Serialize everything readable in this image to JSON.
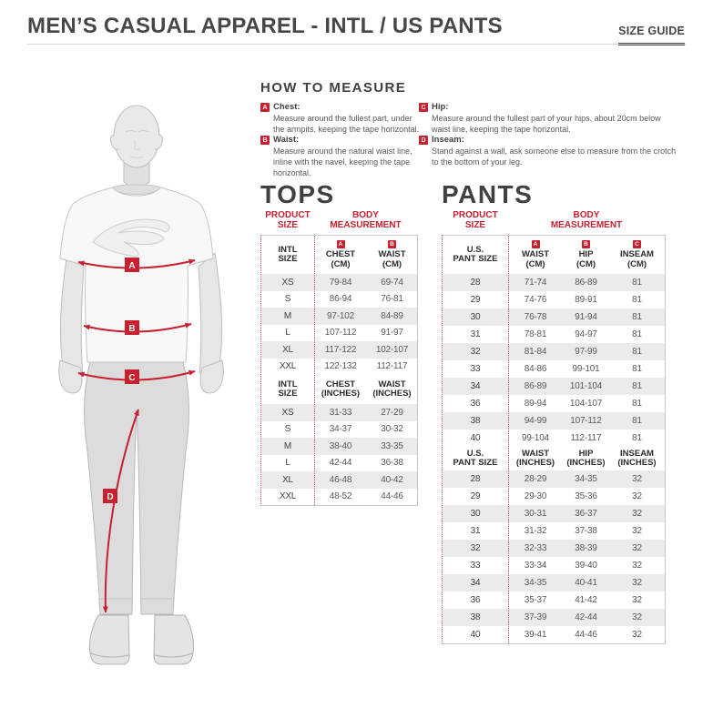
{
  "page": {
    "title": "MEN’S CASUAL APPAREL - INTL / US PANTS",
    "size_guide_label": "SIZE GUIDE"
  },
  "colors": {
    "accent_red": "#c8202e",
    "dark_text": "#414042",
    "row_stripe": "#ebebeb"
  },
  "how_to_measure": {
    "heading": "HOW TO MEASURE",
    "items": [
      {
        "letter": "A",
        "label": "Chest:",
        "text": "Measure around the fullest part, under the armpits, keeping the tape horizontal."
      },
      {
        "letter": "B",
        "label": "Waist:",
        "text": "Measure around the natural waist line, inline with the navel, keeping the tape horizontal."
      },
      {
        "letter": "C",
        "label": "Hip:",
        "text": "Measure around the fullest part of your hips, about 20cm below waist line, keeping the tape horizontal."
      },
      {
        "letter": "D",
        "label": "Inseam:",
        "text": "Stand against a wall, ask someone else to measure from the crotch to the bottom of your leg."
      }
    ]
  },
  "figure": {
    "badge_a": "A",
    "badge_b": "B",
    "badge_c": "C",
    "badge_d": "D"
  },
  "tops": {
    "title": "TOPS",
    "group_product": "PRODUCT SIZE",
    "group_body": "BODY MEASUREMENT",
    "cm_header": {
      "size": "INTL\nSIZE",
      "c1_badge": "A",
      "c1": "CHEST\n(CM)",
      "c2_badge": "B",
      "c2": "WAIST\n(CM)"
    },
    "inch_header": {
      "size": "INTL\nSIZE",
      "c1": "CHEST\n(INCHES)",
      "c2": "WAIST\n(INCHES)"
    },
    "cm_rows": [
      [
        "XS",
        "79-84",
        "69-74"
      ],
      [
        "S",
        "86-94",
        "76-81"
      ],
      [
        "M",
        "97-102",
        "84-89"
      ],
      [
        "L",
        "107-112",
        "91-97"
      ],
      [
        "XL",
        "117-122",
        "102-107"
      ],
      [
        "XXL",
        "122-132",
        "112-117"
      ]
    ],
    "inch_rows": [
      [
        "XS",
        "31-33",
        "27-29"
      ],
      [
        "S",
        "34-37",
        "30-32"
      ],
      [
        "M",
        "38-40",
        "33-35"
      ],
      [
        "L",
        "42-44",
        "36-38"
      ],
      [
        "XL",
        "46-48",
        "40-42"
      ],
      [
        "XXL",
        "48-52",
        "44-46"
      ]
    ]
  },
  "pants": {
    "title": "PANTS",
    "group_product": "PRODUCT SIZE",
    "group_body": "BODY MEASUREMENT",
    "cm_header": {
      "size": "U.S.\nPANT SIZE",
      "c1_badge": "A",
      "c1": "WAIST\n(CM)",
      "c2_badge": "B",
      "c2": "HIP\n(CM)",
      "c3_badge": "C",
      "c3": "INSEAM\n(CM)"
    },
    "inch_header": {
      "size": "U.S.\nPANT SIZE",
      "c1": "WAIST\n(INCHES)",
      "c2": "HIP\n(INCHES)",
      "c3": "INSEAM\n(INCHES)"
    },
    "cm_rows": [
      [
        "28",
        "71-74",
        "86-89",
        "81"
      ],
      [
        "29",
        "74-76",
        "89-91",
        "81"
      ],
      [
        "30",
        "76-78",
        "91-94",
        "81"
      ],
      [
        "31",
        "78-81",
        "94-97",
        "81"
      ],
      [
        "32",
        "81-84",
        "97-99",
        "81"
      ],
      [
        "33",
        "84-86",
        "99-101",
        "81"
      ],
      [
        "34",
        "86-89",
        "101-104",
        "81"
      ],
      [
        "36",
        "89-94",
        "104-107",
        "81"
      ],
      [
        "38",
        "94-99",
        "107-112",
        "81"
      ],
      [
        "40",
        "99-104",
        "112-117",
        "81"
      ]
    ],
    "inch_rows": [
      [
        "28",
        "28-29",
        "34-35",
        "32"
      ],
      [
        "29",
        "29-30",
        "35-36",
        "32"
      ],
      [
        "30",
        "30-31",
        "36-37",
        "32"
      ],
      [
        "31",
        "31-32",
        "37-38",
        "32"
      ],
      [
        "32",
        "32-33",
        "38-39",
        "32"
      ],
      [
        "33",
        "33-34",
        "39-40",
        "32"
      ],
      [
        "34",
        "34-35",
        "40-41",
        "32"
      ],
      [
        "36",
        "35-37",
        "41-42",
        "32"
      ],
      [
        "38",
        "37-39",
        "42-44",
        "32"
      ],
      [
        "40",
        "39-41",
        "44-46",
        "32"
      ]
    ]
  }
}
